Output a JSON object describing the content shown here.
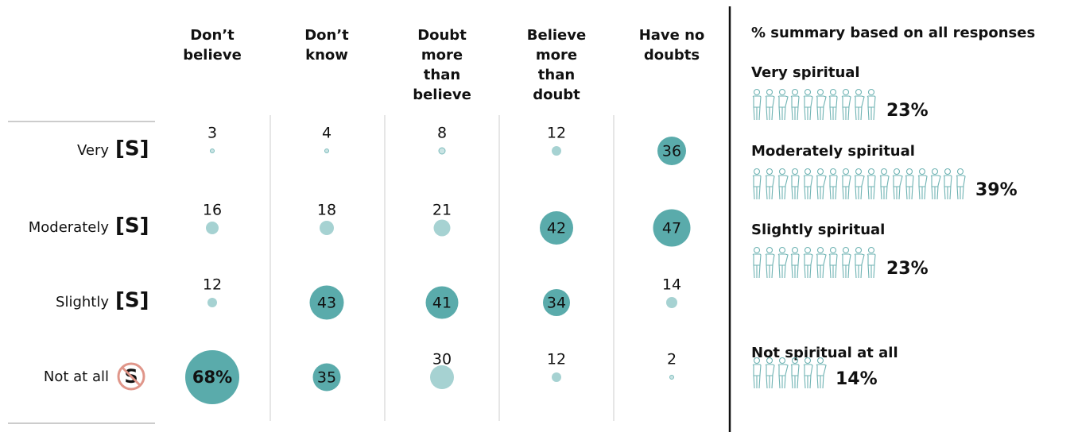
{
  "chart_data": {
    "type": "bubble",
    "columns": [
      "Don’t believe",
      "Don’t know",
      "Doubt more than believe",
      "Believe more than doubt",
      "Have no doubts"
    ],
    "rows": [
      "Very",
      "Moderately",
      "Slightly",
      "Not at all"
    ],
    "row_icon": "[S]",
    "no_icon": "S",
    "values": [
      [
        3,
        4,
        8,
        12,
        36
      ],
      [
        16,
        18,
        21,
        42,
        47
      ],
      [
        12,
        43,
        41,
        34,
        14
      ],
      [
        68,
        35,
        30,
        12,
        2
      ]
    ],
    "value_labels": [
      [
        null,
        null,
        null,
        null,
        null
      ],
      [
        null,
        null,
        null,
        null,
        null
      ],
      [
        null,
        null,
        null,
        null,
        null
      ],
      [
        "68%",
        null,
        null,
        null,
        null
      ]
    ],
    "colors": {
      "dark": "#5aabab",
      "light": "#a6d2d2"
    },
    "summary": {
      "title": "% summary based on all responses",
      "categories": [
        "Very spiritual",
        "Moderately spiritual",
        "Slightly spiritual",
        "Not spiritual at all"
      ],
      "values": [
        23,
        39,
        23,
        14
      ],
      "value_labels": [
        "23%",
        "39%",
        "23%",
        "14%"
      ]
    }
  }
}
